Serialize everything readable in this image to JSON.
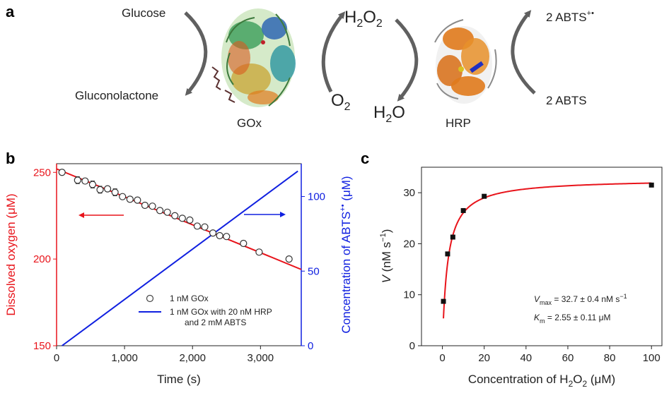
{
  "panel_a": {
    "label": "a",
    "glucose": "Glucose",
    "gluconolactone": "Gluconolactone",
    "gox": "GOx",
    "h2o2": {
      "main": "H",
      "sub1": "2",
      "mid": "O",
      "sub2": "2"
    },
    "o2": {
      "main": "O",
      "sub": "2"
    },
    "h2o": {
      "main": "H",
      "sub": "2",
      "end": "O"
    },
    "hrp": "HRP",
    "abts_radical": {
      "main": "2 ABTS",
      "sup": "+•"
    },
    "abts": "2 ABTS"
  },
  "colors": {
    "oxygen": "#e8141b",
    "abts": "#1020e0",
    "fit": "#e8141b",
    "arrow_gray": "#606060",
    "gox_protein": "#4aa85a",
    "hrp_protein": "#e07a1c"
  },
  "chart_data": [
    {
      "panel": "b",
      "type": "scatter",
      "xlabel": "Time (s)",
      "ylabel_left": "Dissolved oxygen (μM)",
      "ylabel_right": {
        "main": "Concentration of ABTS",
        "sup": "+•",
        "end": " (μM)"
      },
      "xlim": [
        0,
        3600
      ],
      "ylim_left": [
        150,
        255
      ],
      "ylim_right": [
        0,
        122
      ],
      "xticks": [
        "0",
        "1,000",
        "2,000",
        "3,000"
      ],
      "xtick_values": [
        0,
        1000,
        2000,
        3000
      ],
      "yticks_left": [
        "150",
        "200",
        "250"
      ],
      "ytick_values_left": [
        150,
        200,
        250
      ],
      "yticks_right": [
        "0",
        "50",
        "100"
      ],
      "ytick_values_right": [
        0,
        50,
        100
      ],
      "series": [
        {
          "name": "1 nM GOx",
          "marker": "open-circle",
          "axis": "left",
          "x": [
            80,
            310,
            420,
            530,
            640,
            750,
            860,
            970,
            1080,
            1190,
            1300,
            1410,
            1520,
            1630,
            1740,
            1850,
            1960,
            2070,
            2180,
            2300,
            2400,
            2500,
            2750,
            2980,
            3420
          ],
          "y": [
            250,
            245.5,
            245,
            243,
            240,
            240.5,
            238.5,
            236,
            234.5,
            234,
            231,
            230.5,
            228,
            227,
            225,
            223.5,
            222.5,
            219,
            218.5,
            215,
            213.5,
            213,
            209,
            204,
            200
          ],
          "err": [
            1.5,
            2,
            1.5,
            2,
            2,
            1.5,
            2,
            1.5,
            1.5,
            1.5,
            1.2,
            1.2,
            1.2,
            1.2,
            1.2,
            1.2,
            1.2,
            1.2,
            1.2,
            1.2,
            1.2,
            1.2,
            1.5,
            1.5,
            1
          ]
        },
        {
          "name": "Linear fit",
          "style": "line",
          "axis": "left",
          "x": [
            0,
            3600
          ],
          "y": [
            252,
            194
          ]
        },
        {
          "name": "1 nM GOx with 20 nM HRP and 2 mM ABTS",
          "style": "line",
          "axis": "right",
          "x": [
            80,
            3550
          ],
          "y": [
            0,
            117
          ]
        }
      ],
      "legend": {
        "line1": "1 nM GOx",
        "line2": "1 nM GOx with 20 nM HRP",
        "line3": "and 2 mM ABTS",
        "placement": "lower-center"
      },
      "annotations": {
        "left_arrow": "points to left axis",
        "right_arrow": "points to right axis"
      }
    },
    {
      "panel": "c",
      "type": "scatter",
      "xlabel": {
        "main": "Concentration of H",
        "sub": "2",
        "mid": "O",
        "sub2": "2",
        "end": " (μM)"
      },
      "ylabel": {
        "main": "V",
        "rest": " (nM s",
        "sup": "−1",
        "end": ")"
      },
      "xlim": [
        -10,
        105
      ],
      "ylim": [
        0,
        35
      ],
      "xticks": [
        "0",
        "20",
        "40",
        "60",
        "80",
        "100"
      ],
      "xtick_values": [
        0,
        20,
        40,
        60,
        80,
        100
      ],
      "yticks": [
        "0",
        "10",
        "20",
        "30"
      ],
      "ytick_values": [
        0,
        10,
        20,
        30
      ],
      "series": [
        {
          "name": "Measured",
          "marker": "filled-square",
          "x": [
            0.5,
            2.5,
            5,
            10,
            20,
            100
          ],
          "y": [
            8.7,
            18,
            21.3,
            26.5,
            29.3,
            31.5
          ]
        },
        {
          "name": "Michaelis-Menten fit",
          "style": "line",
          "vmax": 32.7,
          "km": 2.55
        }
      ],
      "annotation": {
        "vmax": {
          "sym": "V",
          "sub": "max",
          "text": " = 32.7 ± 0.4 nM s",
          "sup": "−1"
        },
        "km": {
          "sym": "K",
          "sub": "m",
          "text": " = 2.55 ± 0.11 μM"
        }
      }
    }
  ],
  "panel_labels": {
    "b": "b",
    "c": "c"
  }
}
